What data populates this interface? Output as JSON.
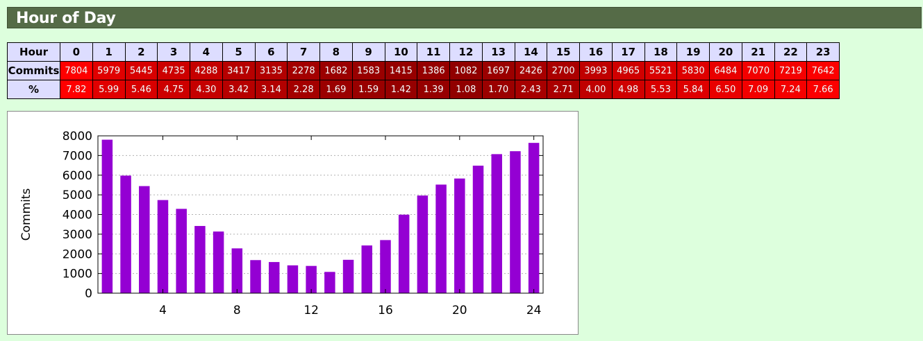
{
  "section_title": "Hour of Day",
  "table": {
    "row_labels": {
      "hour": "Hour",
      "commits": "Commits",
      "percent": "%"
    },
    "hours": [
      "0",
      "1",
      "2",
      "3",
      "4",
      "5",
      "6",
      "7",
      "8",
      "9",
      "10",
      "11",
      "12",
      "13",
      "14",
      "15",
      "16",
      "17",
      "18",
      "19",
      "20",
      "21",
      "22",
      "23"
    ],
    "commits": [
      "7804",
      "5979",
      "5445",
      "4735",
      "4288",
      "3417",
      "3135",
      "2278",
      "1682",
      "1583",
      "1415",
      "1386",
      "1082",
      "1697",
      "2426",
      "2700",
      "3993",
      "4965",
      "5521",
      "5830",
      "6484",
      "7070",
      "7219",
      "7642"
    ],
    "percent": [
      "7.82",
      "5.99",
      "5.46",
      "4.75",
      "4.30",
      "3.42",
      "3.14",
      "2.28",
      "1.69",
      "1.59",
      "1.42",
      "1.39",
      "1.08",
      "1.70",
      "2.43",
      "2.71",
      "4.00",
      "4.98",
      "5.53",
      "5.84",
      "6.50",
      "7.09",
      "7.24",
      "7.66"
    ]
  },
  "chart_data": {
    "type": "bar",
    "x": [
      1,
      2,
      3,
      4,
      5,
      6,
      7,
      8,
      9,
      10,
      11,
      12,
      13,
      14,
      15,
      16,
      17,
      18,
      19,
      20,
      21,
      22,
      23,
      24
    ],
    "values": [
      7804,
      5979,
      5445,
      4735,
      4288,
      3417,
      3135,
      2278,
      1682,
      1583,
      1415,
      1386,
      1082,
      1697,
      2426,
      2700,
      3993,
      4965,
      5521,
      5830,
      6484,
      7070,
      7219,
      7642
    ],
    "ylabel": "Commits",
    "xlabel": "",
    "ylim": [
      0,
      8000
    ],
    "xlim": [
      0.5,
      24.5
    ],
    "yticks": [
      "0",
      "1000",
      "2000",
      "3000",
      "4000",
      "5000",
      "6000",
      "7000",
      "8000"
    ],
    "xticks": [
      "4",
      "8",
      "12",
      "16",
      "20",
      "24"
    ],
    "grid": "horizontal dotted",
    "bar_color": "#9400d3"
  }
}
